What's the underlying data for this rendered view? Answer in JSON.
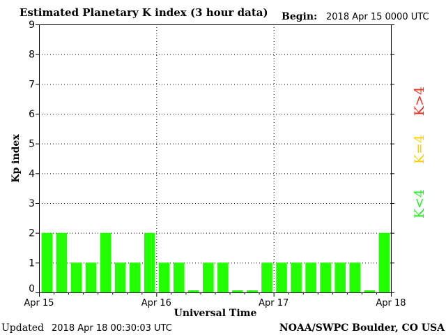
{
  "header": {
    "title": "Estimated Planetary K index (3 hour data)",
    "begin_label": "Begin:",
    "begin_value": "2018 Apr 15 0000 UTC"
  },
  "footer": {
    "updated_label": "Updated",
    "updated_value": "2018 Apr 18 00:30:03 UTC",
    "source": "NOAA/SWPC Boulder, CO USA"
  },
  "legend": {
    "items": [
      {
        "label": "K>4",
        "color": "#ff2a1a"
      },
      {
        "label": "K=4",
        "color": "#ffd000"
      },
      {
        "label": "K<4",
        "color": "#22ee22"
      }
    ]
  },
  "colors": {
    "bar": "#22ff00",
    "axis": "#000000",
    "grid": "#000000",
    "background": "#ffffff"
  },
  "chart_data": {
    "type": "bar",
    "title": "Estimated Planetary K index (3 hour data)",
    "xlabel": "Universal Time",
    "ylabel": "Kp index",
    "ylim": [
      0,
      9
    ],
    "yticks": [
      0,
      1,
      2,
      3,
      4,
      5,
      6,
      7,
      8,
      9
    ],
    "xticks": [
      "Apr 15",
      "Apr 16",
      "Apr 17",
      "Apr 18"
    ],
    "grid": true,
    "series": [
      {
        "values": [
          2,
          2,
          1,
          1,
          2,
          1,
          1,
          2,
          1,
          1,
          0.07,
          1,
          1,
          0.07,
          0.07,
          1,
          1,
          1,
          1,
          1,
          1,
          1,
          0.07,
          2
        ]
      }
    ]
  }
}
